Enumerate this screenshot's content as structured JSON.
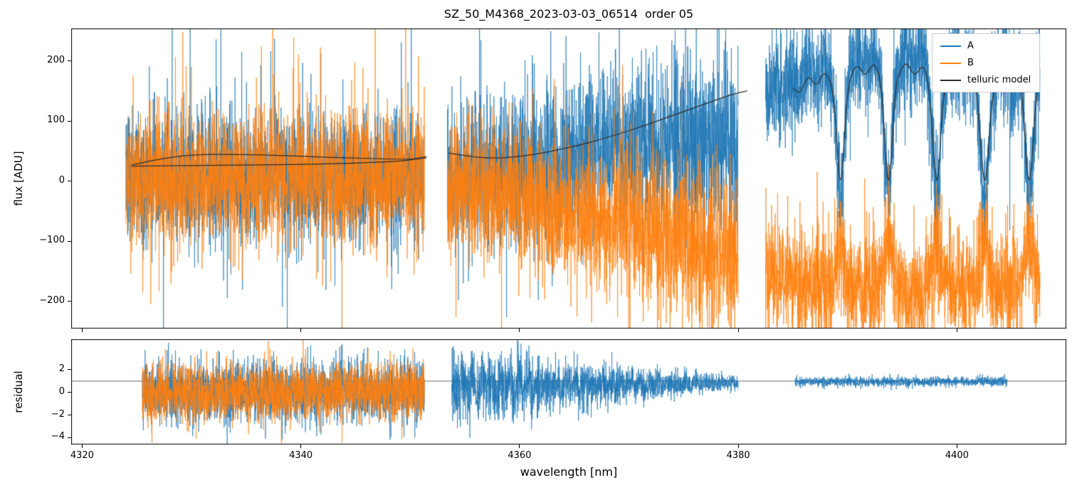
{
  "title": "SZ_50_M4368_2023-03-03_06514  order 05",
  "legend": {
    "position": "upper right",
    "entries": [
      {
        "label": "A",
        "color": "#1f77b4"
      },
      {
        "label": "B",
        "color": "#ff7f0e"
      },
      {
        "label": "telluric model",
        "color": "#2e2e2e"
      }
    ]
  },
  "chart_data": [
    {
      "type": "line",
      "panel": "flux",
      "title": "SZ_50_M4368_2023-03-03_06514  order 05",
      "xlabel": "",
      "ylabel": "flux [ADU]",
      "xlim": [
        4319,
        4410
      ],
      "ylim": [
        -245,
        254
      ],
      "xticks": [
        4320,
        4340,
        4360,
        4380,
        4400
      ],
      "show_xtick_labels": false,
      "yticks": [
        -200,
        -100,
        0,
        100,
        200
      ],
      "grid": false,
      "legend_position": "upper right",
      "series": [
        {
          "name": "A",
          "color": "#1f77b4",
          "style": "noisy-spectrum",
          "segments": [
            {
              "x": [
                4324.0,
                4351.3
              ],
              "mean": [
                5,
                5
              ],
              "sd": [
                52,
                52
              ],
              "spike_prob": 0.06,
              "spike_mult": 2.2
            },
            {
              "x": [
                4353.4,
                4380.0
              ],
              "mean": [
                5,
                85
              ],
              "sd": [
                55,
                75
              ],
              "spike_prob": 0.05,
              "spike_mult": 1.8
            },
            {
              "x": [
                4382.5,
                4407.6
              ],
              "use_comb": true,
              "comb_gain": 1.25,
              "comb_offset": -30,
              "sd": [
                42,
                42
              ],
              "spike_prob": 0.04,
              "spike_mult": 1.7
            }
          ]
        },
        {
          "name": "B",
          "color": "#ff7f0e",
          "style": "noisy-spectrum",
          "segments": [
            {
              "x": [
                4324.0,
                4351.3
              ],
              "mean": [
                5,
                5
              ],
              "sd": [
                52,
                52
              ],
              "spike_prob": 0.06,
              "spike_mult": 2.2
            },
            {
              "x": [
                4353.4,
                4380.0
              ],
              "mean": [
                0,
                -120
              ],
              "sd": [
                55,
                65
              ],
              "spike_prob": 0.05,
              "spike_mult": 1.8
            },
            {
              "x": [
                4382.5,
                4407.6
              ],
              "use_comb": true,
              "comb_gain": -0.45,
              "comb_offset": -100,
              "sd": [
                45,
                45
              ],
              "spike_prob": 0.04,
              "spike_mult": 1.7
            }
          ]
        },
        {
          "name": "telluric model",
          "color": "#2e2e2e",
          "style": "smooth-model",
          "polylines": [
            [
              [
                4324.5,
                27
              ],
              [
                4327,
                37
              ],
              [
                4330,
                44
              ],
              [
                4334,
                45
              ],
              [
                4338,
                43
              ],
              [
                4342,
                40
              ],
              [
                4346,
                38
              ],
              [
                4350,
                36
              ],
              [
                4351.5,
                41
              ]
            ],
            [
              [
                4324.5,
                25
              ],
              [
                4330,
                26
              ],
              [
                4335,
                27
              ],
              [
                4340,
                28
              ],
              [
                4345,
                30
              ],
              [
                4349,
                33
              ],
              [
                4351.5,
                39
              ]
            ],
            [
              [
                4353.5,
                47
              ],
              [
                4355.5,
                41
              ],
              [
                4357.5,
                38
              ],
              [
                4359.5,
                40
              ],
              [
                4361.5,
                45
              ],
              [
                4363.5,
                52
              ],
              [
                4365.5,
                60
              ],
              [
                4367.5,
                70
              ],
              [
                4369.5,
                81
              ],
              [
                4371.5,
                93
              ],
              [
                4373.5,
                106
              ],
              [
                4375.5,
                119
              ],
              [
                4377.5,
                132
              ],
              [
                4379.5,
                145
              ],
              [
                4380.8,
                150
              ]
            ]
          ],
          "comb": {
            "x": [
              4385.0,
              4407.4
            ],
            "plateau": [
              [
                4385,
                148
              ],
              [
                4386.5,
                166
              ],
              [
                4388,
                172
              ],
              [
                4390.5,
                183
              ],
              [
                4392,
                186
              ],
              [
                4395,
                189
              ],
              [
                4396.5,
                184
              ],
              [
                4399,
                177
              ],
              [
                4401,
                173
              ],
              [
                4403,
                168
              ],
              [
                4405,
                166
              ],
              [
                4407.4,
                158
              ]
            ],
            "ripple": {
              "period": 1.5,
              "amp": 7
            },
            "dips": [
              {
                "c": 4389.35,
                "w": 0.5
              },
              {
                "c": 4393.75,
                "w": 0.5
              },
              {
                "c": 4398.15,
                "w": 0.52
              },
              {
                "c": 4402.55,
                "w": 0.55
              },
              {
                "c": 4406.6,
                "w": 0.5
              }
            ],
            "depth": 0.99
          }
        }
      ]
    },
    {
      "type": "line",
      "panel": "residual",
      "title": "",
      "xlabel": "wavelength [nm]",
      "ylabel": "residual",
      "xlim": [
        4319,
        4410
      ],
      "ylim": [
        -4.6,
        4.7
      ],
      "xticks": [
        4320,
        4340,
        4360,
        4380,
        4400
      ],
      "show_xtick_labels": true,
      "yticks": [
        -4,
        -2,
        0,
        2
      ],
      "grid": false,
      "reference_line_y": 1,
      "series": [
        {
          "name": "A residual",
          "color": "#1f77b4",
          "segments": [
            {
              "x": [
                4325.5,
                4351.3
              ],
              "mean": [
                0.1,
                0.1
              ],
              "sd": [
                1.35,
                1.35
              ],
              "spike_prob": 0.05,
              "spike_mult": 1.6
            },
            {
              "x": [
                4353.8,
                4380.0
              ],
              "mean": [
                0.4,
                0.9
              ],
              "sd": [
                1.5,
                0.3
              ],
              "spike_prob": 0.04,
              "spike_mult": 1.5,
              "wavy": {
                "period": 0.85,
                "amp": [
                  1.1,
                  0.12
                ]
              }
            },
            {
              "x": [
                4385.2,
                4404.6
              ],
              "mean": [
                0.95,
                0.95
              ],
              "sd": [
                0.22,
                0.22
              ],
              "spike_prob": 0.02,
              "spike_mult": 1.5
            }
          ]
        },
        {
          "name": "B residual",
          "color": "#ff7f0e",
          "segments": [
            {
              "x": [
                4325.5,
                4351.3
              ],
              "mean": [
                0.05,
                0.05
              ],
              "sd": [
                1.25,
                1.25
              ],
              "spike_prob": 0.05,
              "spike_mult": 1.6
            }
          ]
        }
      ]
    }
  ]
}
